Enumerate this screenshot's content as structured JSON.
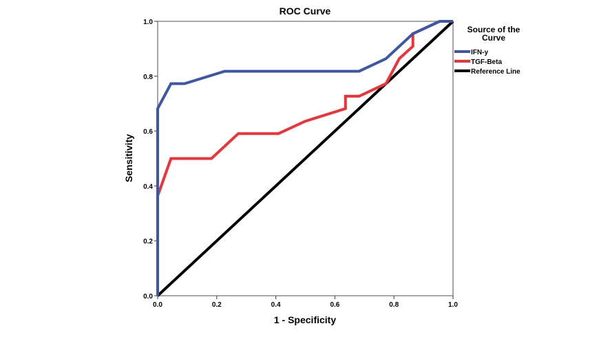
{
  "chart_data": {
    "type": "line",
    "title": "ROC Curve",
    "xlabel": "1 - Specificity",
    "ylabel": "Sensitivity",
    "xlim": [
      0,
      1
    ],
    "ylim": [
      0,
      1
    ],
    "grid": false,
    "x_ticks": [
      "0.0",
      "0.2",
      "0.4",
      "0.6",
      "0.8",
      "1.0"
    ],
    "y_ticks": [
      "0.0",
      "0.2",
      "0.4",
      "0.6",
      "0.8",
      "1.0"
    ],
    "legend": {
      "title_line1": "Source of the",
      "title_line2": "Curve",
      "placement": "right"
    },
    "series": [
      {
        "name": "IFN-y",
        "color": "#3c56a8",
        "x": [
          0,
          0,
          0.045,
          0.091,
          0.227,
          0.682,
          0.773,
          0.864,
          0.955,
          1
        ],
        "y": [
          0,
          0.682,
          0.773,
          0.773,
          0.818,
          0.818,
          0.864,
          0.955,
          1,
          1
        ]
      },
      {
        "name": "TGF-Beta",
        "color": "#ee3338",
        "x": [
          0,
          0,
          0.045,
          0.182,
          0.273,
          0.409,
          0.5,
          0.636,
          0.636,
          0.682,
          0.773,
          0.818,
          0.864,
          0.864,
          0.955,
          1
        ],
        "y": [
          0,
          0.364,
          0.5,
          0.5,
          0.591,
          0.591,
          0.636,
          0.682,
          0.727,
          0.727,
          0.773,
          0.864,
          0.909,
          0.955,
          1,
          1
        ]
      },
      {
        "name": "Reference Line",
        "color": "#000000",
        "x": [
          0,
          1
        ],
        "y": [
          0,
          1
        ]
      }
    ]
  }
}
